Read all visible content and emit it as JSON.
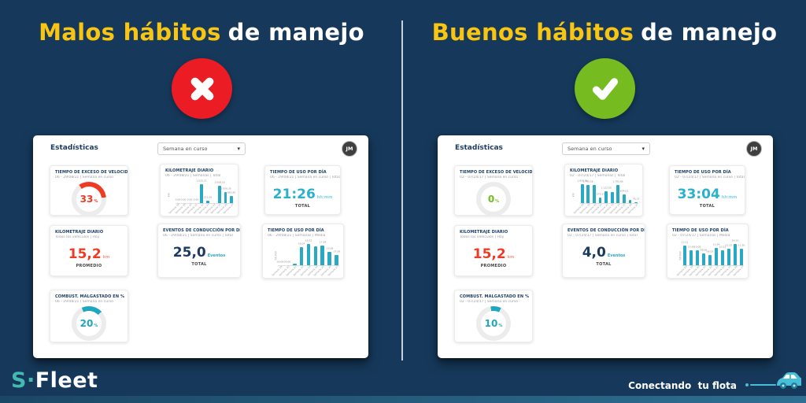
{
  "colors": {
    "background": "#16395B",
    "accent_teal": "#2AA9C4",
    "accent_red": "#EC1C24",
    "accent_green": "#76BC21",
    "accent_yellow": "#F9C513",
    "navy_text": "#1A3B5F"
  },
  "left_section": {
    "title_highlight": "Malos hábitos",
    "title_rest": "de manejo",
    "badge_icon": "cross-icon"
  },
  "right_section": {
    "title_highlight": "Buenos hábitos",
    "title_rest": "de manejo",
    "badge_icon": "check-icon"
  },
  "footer": {
    "logo_accent": "S",
    "logo_dot": "·",
    "logo_rest": "Fleet",
    "tagline": "Conectando  tu flota",
    "car_icon": "car-icon"
  },
  "dashboards": {
    "left": {
      "header": "Estadísticas",
      "period_dropdown": {
        "value": "Semana en curso",
        "caret": "▾"
      },
      "avatar_initials": "JM",
      "cards": [
        {
          "type": "donut",
          "title": "TIEMPO DE EXCESO DE VELOCIDAD EN ...",
          "subtitle": "06 - 29/08/21  |  Semana en curso",
          "value": "33",
          "unit": "%",
          "percent": 33,
          "color": "#F03B24",
          "start": -35
        },
        {
          "type": "bars",
          "title": "KILOMETRAJE DIARIO",
          "subtitle": "06 - 29/08/21  |  Semanas  |  Total",
          "ylabel": "km",
          "bar_color": "#2AA9C4",
          "values": [
            "0,00",
            "0,00",
            "0,00",
            "0,00",
            "1.825,21",
            "211,56",
            "",
            "1.658,16",
            "1.056,35",
            "665,90"
          ],
          "heights": [
            0,
            0,
            0,
            0,
            100,
            12,
            0,
            91,
            58,
            36
          ],
          "xlabels": [
            "Semana 18",
            "Semana 19",
            "Semana 20",
            "Semana 21",
            "Semana 22",
            "Semana 23",
            "Semana 24",
            "Semana 25",
            "Semana 26",
            "Semana 27"
          ]
        },
        {
          "type": "big",
          "title": "TIEMPO DE USO POR DÍA",
          "subtitle": "06 - 29/08/21  |  Semana en curso  |  Total",
          "value": "21:26",
          "unit": "hh:mm",
          "caption": "TOTAL",
          "value_color": "#29B2C9",
          "unit_color": "#7ED4E4"
        },
        {
          "type": "big",
          "title": "KILOMETRAJE DIARIO",
          "subtitle": "Todos los vehículos  |  Hoy",
          "value": "15,2",
          "unit": "km",
          "caption": "PROMEDIO",
          "value_color": "#F03B24",
          "unit_color": "#F59A8E"
        },
        {
          "type": "big",
          "title": "EVENTOS DE CONDUCCIÓN POR DÍA",
          "subtitle": "06 - 29/08/21  |  Semana en curso  |  Total",
          "value": "25,0",
          "unit": "Eventos",
          "caption": "TOTAL",
          "value_color": "#1A3B5F",
          "unit_color": "#2AA9C4"
        },
        {
          "type": "bars",
          "title": "TIEMPO DE USO POR DÍA",
          "subtitle": "06 - 29/08/21  |  Semanas  |  Media",
          "ylabel": "hh:mm",
          "bar_color": "#2AA9C4",
          "values": [
            "00:00",
            "00:00",
            "",
            "16:04",
            "16:22",
            "",
            "17:29",
            "15:08",
            "07:59"
          ],
          "heights": [
            0,
            0,
            7,
            85,
            100,
            88,
            92,
            62,
            48
          ],
          "xlabels": [
            "Semana 19",
            "Semana 20",
            "Semana 21",
            "Semana 22",
            "Semana 23",
            "Semana 24",
            "Semana 25",
            "Semana 26",
            "Semana 27"
          ]
        },
        {
          "type": "donut",
          "title": "COMBUST. MALGASTADO EN %",
          "subtitle": "06 - 29/08/21  |  Semana en curso",
          "value": "20",
          "unit": "%",
          "percent": 20,
          "color": "#1FA7C0",
          "start": -25
        }
      ]
    },
    "right": {
      "header": "Estadísticas",
      "period_dropdown": {
        "value": "Semana en curso",
        "caret": "▾"
      },
      "avatar_initials": "JM",
      "cards": [
        {
          "type": "donut",
          "title": "TIEMPO DE EXCESO DE VELOCIDAD EN ...",
          "subtitle": "02 - 07/24/17  |  Semana en curso",
          "value": "0",
          "unit": "%",
          "percent": 0,
          "color": "#6FBE22",
          "start": 0
        },
        {
          "type": "bars",
          "title": "KILOMETRAJE DIARIO",
          "subtitle": "02 - 07/24/17  |  Semanas  |  Total",
          "ylabel": "km",
          "bar_color": "#2AA9C4",
          "values": [
            "1.850,06",
            "1.792,56",
            "",
            "570,12",
            "1.122,50",
            "",
            "1.783,66",
            "834,03",
            "",
            "76,13"
          ],
          "heights": [
            100,
            97,
            95,
            31,
            61,
            58,
            96,
            45,
            18,
            4
          ],
          "xlabels": [
            "Semana 18",
            "Semana 19",
            "Semana 20",
            "Semana 21",
            "Semana 22",
            "Semana 23",
            "Semana 24",
            "Semana 25",
            "Semana 26",
            "Semana 27"
          ]
        },
        {
          "type": "big",
          "title": "TIEMPO DE USO POR DÍA",
          "subtitle": "02 - 07/24/17  |  Semana en curso  |  Total",
          "value": "33:04",
          "unit": "hh:mm",
          "caption": "TOTAL",
          "value_color": "#29B2C9",
          "unit_color": "#7ED4E4"
        },
        {
          "type": "big",
          "title": "KILOMETRAJE DIARIO",
          "subtitle": "Todos los vehículos  |  Hoy",
          "value": "15,2",
          "unit": "km",
          "caption": "PROMEDIO",
          "value_color": "#F03B24",
          "unit_color": "#F59A8E"
        },
        {
          "type": "big",
          "title": "EVENTOS DE CONDUCCIÓN POR DÍA",
          "subtitle": "02 - 07/24/17  |  Semana en curso  |  Total",
          "value": "4,0",
          "unit": "Eventos",
          "caption": "TOTAL",
          "value_color": "#1A3B5F",
          "unit_color": "#2AA9C4"
        },
        {
          "type": "bars",
          "title": "TIEMPO DE USO POR DÍA",
          "subtitle": "02 - 07/24/17  |  Semanas  |  Media",
          "ylabel": "hh:mm",
          "bar_color": "#2AA9C4",
          "values": [
            "13:12",
            "10:30",
            "10:08",
            "08:06",
            "06:53",
            "11:54",
            "10:22",
            "11:22",
            "14:33",
            "11:20"
          ],
          "heights": [
            91,
            72,
            70,
            56,
            47,
            82,
            71,
            78,
            100,
            78
          ],
          "xlabels": [
            "Semana 18",
            "Semana 19",
            "Semana 20",
            "Semana 21",
            "Semana 22",
            "Semana 23",
            "Semana 24",
            "Semana 25",
            "Semana 26",
            "Semana 27"
          ]
        },
        {
          "type": "donut",
          "title": "COMBUST. MALGASTADO EN %",
          "subtitle": "02 - 07/24/17  |  Semana en curso",
          "value": "10",
          "unit": "%",
          "percent": 10,
          "color": "#1FA7C0",
          "start": -10
        }
      ]
    }
  }
}
